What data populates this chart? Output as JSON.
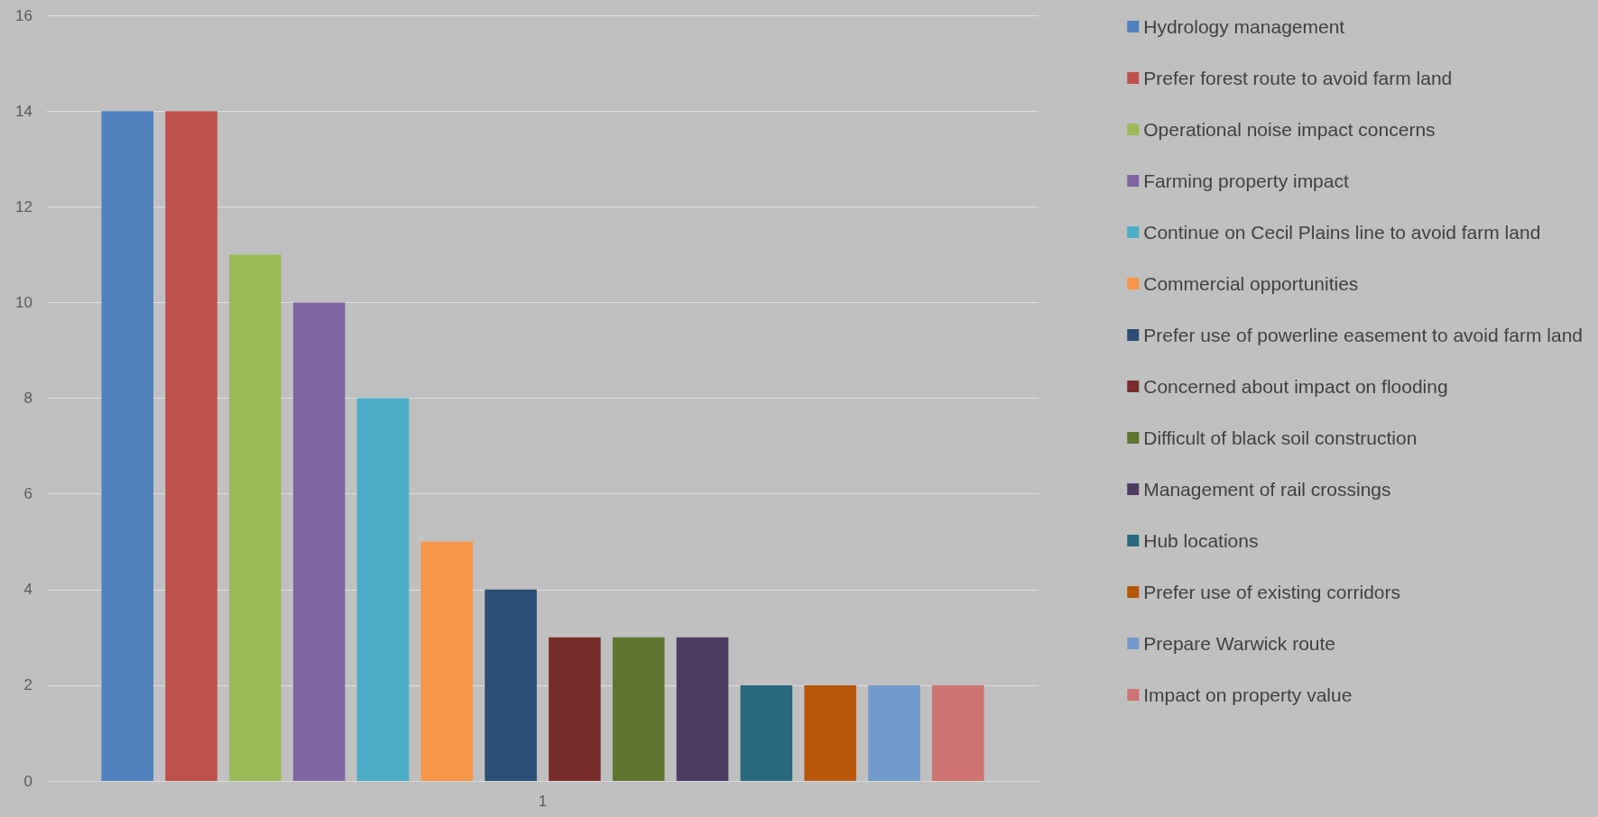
{
  "chart_data": {
    "type": "bar",
    "categories": [
      "1"
    ],
    "series": [
      {
        "name": "Hydrology management",
        "color": "#4f81bd",
        "values": [
          14
        ]
      },
      {
        "name": "Prefer forest route to avoid farm land",
        "color": "#c0504d",
        "values": [
          14
        ]
      },
      {
        "name": "Operational noise impact concerns",
        "color": "#9bbb59",
        "values": [
          11
        ]
      },
      {
        "name": "Farming property impact",
        "color": "#8064a2",
        "values": [
          10
        ]
      },
      {
        "name": "Continue on Cecil Plains line to avoid farm land",
        "color": "#4bacc6",
        "values": [
          8
        ]
      },
      {
        "name": "Commercial opportunities",
        "color": "#f79646",
        "values": [
          5
        ]
      },
      {
        "name": "Prefer use of powerline easement to avoid farm land",
        "color": "#2c4d75",
        "values": [
          4
        ]
      },
      {
        "name": "Concerned about impact on flooding",
        "color": "#772c2a",
        "values": [
          3
        ]
      },
      {
        "name": "Difficult of black soil construction",
        "color": "#5f7530",
        "values": [
          3
        ]
      },
      {
        "name": "Management of rail crossings",
        "color": "#4d3b62",
        "values": [
          3
        ]
      },
      {
        "name": "Hub locations",
        "color": "#276a7c",
        "values": [
          2
        ]
      },
      {
        "name": "Prefer use of existing corridors",
        "color": "#b65708",
        "values": [
          2
        ]
      },
      {
        "name": "Prepare Warwick route",
        "color": "#729aca",
        "values": [
          2
        ]
      },
      {
        "name": "Impact on property value",
        "color": "#cd7371",
        "values": [
          2
        ]
      }
    ],
    "ylim": [
      0,
      16
    ],
    "yticks": [
      0,
      2,
      4,
      6,
      8,
      10,
      12,
      14,
      16
    ],
    "grid": "y",
    "legend": "right"
  }
}
